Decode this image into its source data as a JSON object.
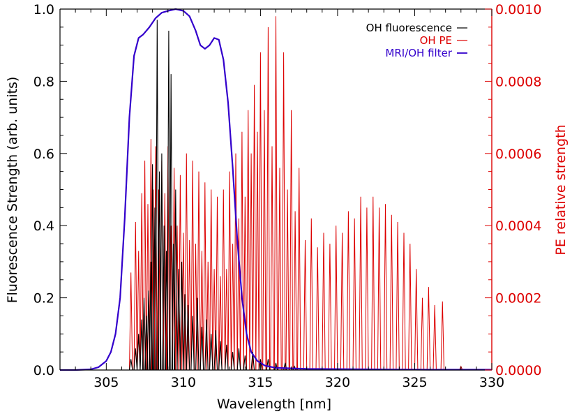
{
  "chart_data": {
    "type": "line",
    "title": "",
    "xlabel": "Wavelength [nm]",
    "ylabel_left": "Fluorescence Strength (arb. units)",
    "ylabel_right": "PE relative strength",
    "xlim": [
      302,
      330
    ],
    "ylim_left": [
      0,
      1.0
    ],
    "ylim_right": [
      0,
      0.001
    ],
    "x_ticks": [
      305,
      310,
      315,
      320,
      325,
      330
    ],
    "x_tick_labels": [
      "305",
      "310",
      "315",
      "320",
      "325",
      "330"
    ],
    "y_left_ticks": [
      0,
      0.2,
      0.4,
      0.6,
      0.8,
      1.0
    ],
    "y_left_tick_labels": [
      "0.0",
      "0.2",
      "0.4",
      "0.6",
      "0.8",
      "1.0"
    ],
    "y_right_ticks": [
      0,
      0.0002,
      0.0004,
      0.0006,
      0.0008,
      0.001
    ],
    "y_right_tick_labels": [
      "0.0000",
      "0.0002",
      "0.0004",
      "0.0006",
      "0.0008",
      "0.0010"
    ],
    "legend_position": "top-right",
    "colors": {
      "fluorescence": "#000000",
      "pe": "#dd0000",
      "filter": "#3300cc",
      "axes_left": "#000000",
      "axes_right": "#dd0000"
    },
    "series": [
      {
        "name": "OH fluorescence",
        "axis": "left",
        "style": "sticks",
        "x": [
          306.6,
          306.9,
          307.1,
          307.3,
          307.45,
          307.6,
          307.75,
          307.9,
          308.0,
          308.15,
          308.3,
          308.45,
          308.6,
          308.75,
          308.9,
          309.05,
          309.2,
          309.35,
          309.5,
          309.7,
          309.9,
          310.1,
          310.3,
          310.6,
          310.9,
          311.2,
          311.5,
          311.8,
          312.1,
          312.4,
          312.8,
          313.2,
          313.6,
          314.0,
          314.5,
          315.0,
          315.5,
          316.0,
          316.6,
          317.2
        ],
        "y": [
          0.03,
          0.06,
          0.1,
          0.14,
          0.2,
          0.15,
          0.22,
          0.3,
          0.57,
          0.45,
          0.97,
          0.55,
          0.6,
          0.4,
          0.33,
          0.94,
          0.82,
          0.35,
          0.5,
          0.28,
          0.3,
          0.21,
          0.18,
          0.15,
          0.2,
          0.12,
          0.14,
          0.1,
          0.11,
          0.08,
          0.07,
          0.05,
          0.06,
          0.04,
          0.05,
          0.03,
          0.03,
          0.02,
          0.02,
          0.01
        ]
      },
      {
        "name": "OH PE",
        "axis": "right",
        "style": "sticks",
        "x": [
          306.6,
          306.9,
          307.1,
          307.3,
          307.5,
          307.7,
          307.9,
          308.05,
          308.2,
          308.4,
          308.6,
          308.8,
          309.0,
          309.2,
          309.4,
          309.6,
          309.8,
          310.0,
          310.2,
          310.4,
          310.6,
          310.8,
          311.0,
          311.2,
          311.4,
          311.6,
          311.8,
          312.0,
          312.2,
          312.4,
          312.6,
          312.8,
          313.0,
          313.2,
          313.4,
          313.6,
          313.8,
          314.0,
          314.2,
          314.4,
          314.6,
          314.8,
          315.0,
          315.25,
          315.5,
          315.75,
          316.0,
          316.25,
          316.5,
          316.75,
          317.0,
          317.25,
          317.5,
          317.9,
          318.3,
          318.7,
          319.1,
          319.5,
          319.9,
          320.3,
          320.7,
          321.1,
          321.5,
          321.9,
          322.3,
          322.7,
          323.1,
          323.5,
          323.9,
          324.3,
          324.7,
          325.1,
          325.5,
          325.9,
          326.3,
          326.8,
          328.0
        ],
        "y": [
          0.00027,
          0.00041,
          0.00033,
          0.00049,
          0.00058,
          0.00046,
          0.00064,
          0.0005,
          0.00062,
          0.0005,
          0.00058,
          0.00049,
          0.00062,
          0.0004,
          0.00056,
          0.0004,
          0.00054,
          0.00038,
          0.0006,
          0.00036,
          0.00058,
          0.00035,
          0.00055,
          0.00033,
          0.00052,
          0.0003,
          0.0005,
          0.00028,
          0.00048,
          0.00026,
          0.0005,
          0.00028,
          0.00055,
          0.00035,
          0.0006,
          0.00042,
          0.00066,
          0.00048,
          0.00072,
          0.0006,
          0.00079,
          0.00066,
          0.00088,
          0.00072,
          0.00095,
          0.00062,
          0.00098,
          0.00056,
          0.00088,
          0.0005,
          0.00072,
          0.00044,
          0.00056,
          0.00036,
          0.00042,
          0.00034,
          0.00038,
          0.00035,
          0.0004,
          0.00038,
          0.00044,
          0.00042,
          0.00048,
          0.00045,
          0.00048,
          0.00045,
          0.00046,
          0.00043,
          0.00041,
          0.00038,
          0.00035,
          0.00028,
          0.0002,
          0.00023,
          0.00018,
          0.00019,
          1e-05
        ]
      },
      {
        "name": "MRI/OH filter",
        "axis": "left",
        "style": "line",
        "x": [
          302,
          303,
          304,
          304.5,
          305,
          305.3,
          305.6,
          305.9,
          306.2,
          306.5,
          306.8,
          307.1,
          307.4,
          307.8,
          308.2,
          308.6,
          309.0,
          309.5,
          310.0,
          310.4,
          310.8,
          311.1,
          311.4,
          311.7,
          312.0,
          312.3,
          312.6,
          312.9,
          313.2,
          313.5,
          313.8,
          314.1,
          314.4,
          314.8,
          315.3,
          316,
          318,
          322,
          326,
          330
        ],
        "y": [
          0.0,
          0.0,
          0.002,
          0.008,
          0.025,
          0.05,
          0.1,
          0.2,
          0.42,
          0.7,
          0.87,
          0.92,
          0.93,
          0.95,
          0.975,
          0.99,
          0.995,
          1.0,
          0.995,
          0.98,
          0.94,
          0.9,
          0.89,
          0.9,
          0.92,
          0.915,
          0.86,
          0.74,
          0.56,
          0.36,
          0.2,
          0.1,
          0.05,
          0.025,
          0.012,
          0.006,
          0.003,
          0.002,
          0.001,
          0.001
        ]
      }
    ]
  }
}
